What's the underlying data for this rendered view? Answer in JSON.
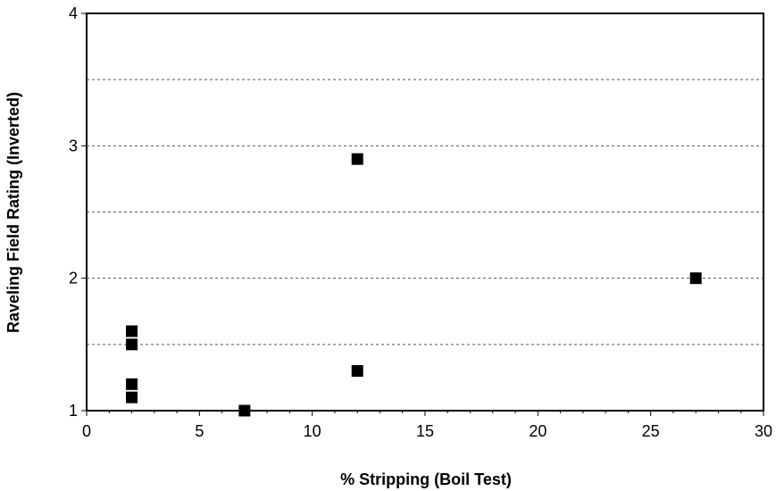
{
  "chart_data": {
    "type": "scatter",
    "xlabel": "% Stripping (Boil Test)",
    "ylabel": "Raveling Field Rating (Inverted)",
    "xlim": [
      0,
      30
    ],
    "ylim": [
      1,
      4
    ],
    "x_ticks": [
      0,
      5,
      10,
      15,
      20,
      25,
      30
    ],
    "y_ticks": [
      1,
      2,
      3,
      4
    ],
    "y_gridlines": [
      1.5,
      2,
      2.5,
      3,
      3.5
    ],
    "grid": "horizontal dashed",
    "marker": "square",
    "colors": {
      "marker": "#000000",
      "grid": "#555555",
      "frame": "#000000"
    },
    "points": [
      {
        "x": 2,
        "y": 1.6
      },
      {
        "x": 2,
        "y": 1.5
      },
      {
        "x": 2,
        "y": 1.2
      },
      {
        "x": 2,
        "y": 1.1
      },
      {
        "x": 7,
        "y": 1.0
      },
      {
        "x": 12,
        "y": 2.9
      },
      {
        "x": 12,
        "y": 1.3
      },
      {
        "x": 27,
        "y": 2.0
      }
    ]
  }
}
